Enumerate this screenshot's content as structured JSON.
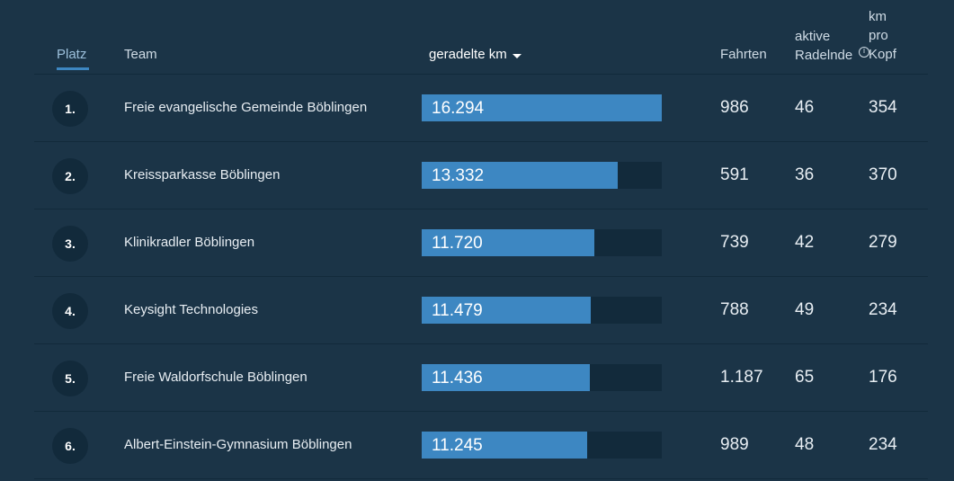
{
  "header": {
    "platz": "Platz",
    "team": "Team",
    "km": "geradelte km",
    "fahrten": "Fahrten",
    "aktive_line1": "aktive",
    "aktive_line2": "Radelnde",
    "kmpro_line1": "km",
    "kmpro_line2": "pro",
    "kmpro_line3": "Kopf",
    "info_icon": "info-icon",
    "sort_icon": "sort-descending-icon"
  },
  "colors": {
    "background": "#1b3447",
    "bar": "#3d87c2",
    "track": "#122a3b"
  },
  "max_km": 16294,
  "rows": [
    {
      "rank": "1.",
      "team": "Freie evangelische Gemeinde Böblingen",
      "km": "16.294",
      "km_value": 16294,
      "fahrten": "986",
      "aktive": "46",
      "kmpro": "354"
    },
    {
      "rank": "2.",
      "team": "Kreissparkasse Böblingen",
      "km": "13.332",
      "km_value": 13332,
      "fahrten": "591",
      "aktive": "36",
      "kmpro": "370"
    },
    {
      "rank": "3.",
      "team": "Klinikradler Böblingen",
      "km": "11.720",
      "km_value": 11720,
      "fahrten": "739",
      "aktive": "42",
      "kmpro": "279"
    },
    {
      "rank": "4.",
      "team": "Keysight Technologies",
      "km": "11.479",
      "km_value": 11479,
      "fahrten": "788",
      "aktive": "49",
      "kmpro": "234"
    },
    {
      "rank": "5.",
      "team": "Freie Waldorfschule Böblingen",
      "km": "11.436",
      "km_value": 11436,
      "fahrten": "1.187",
      "aktive": "65",
      "kmpro": "176"
    },
    {
      "rank": "6.",
      "team": "Albert-Einstein-Gymnasium Böblingen",
      "km": "11.245",
      "km_value": 11245,
      "fahrten": "989",
      "aktive": "48",
      "kmpro": "234"
    }
  ]
}
